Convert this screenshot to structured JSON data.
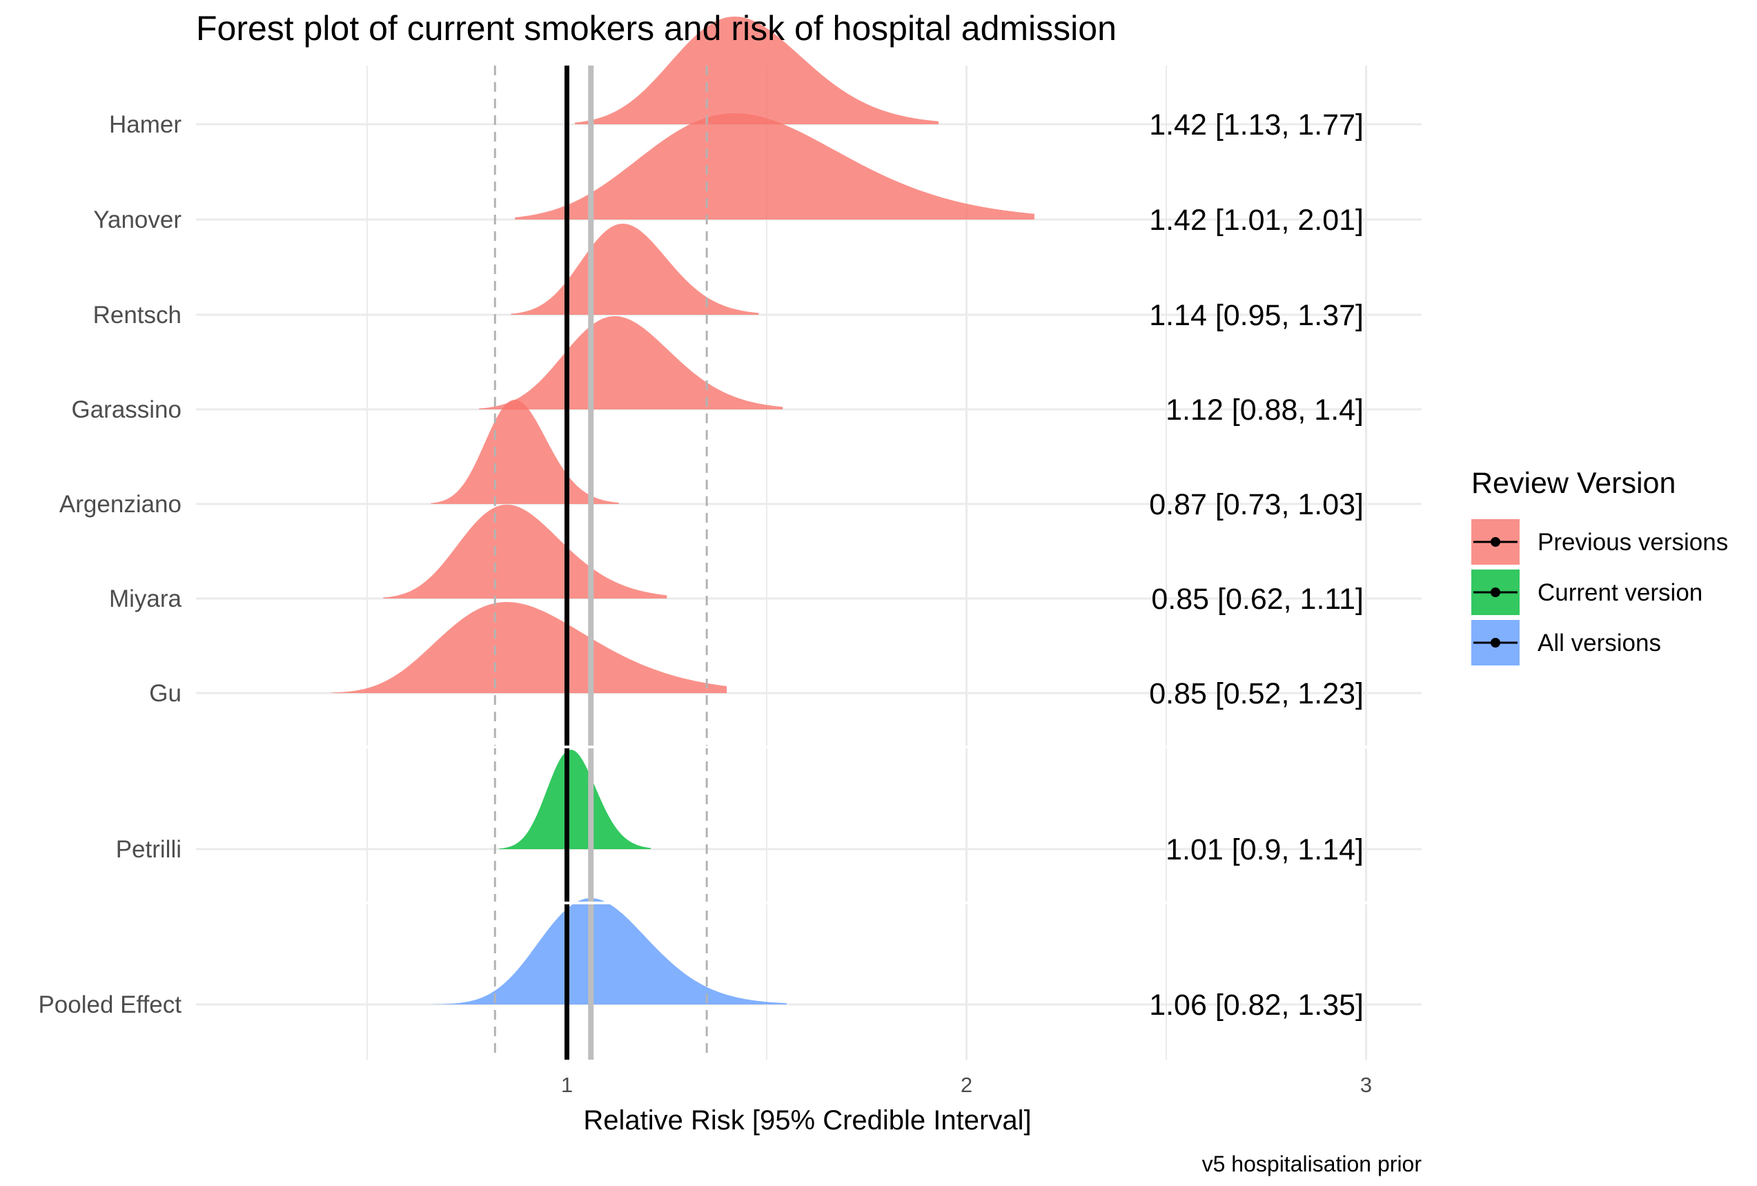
{
  "chart_data": {
    "type": "forest-density",
    "title": "Forest plot of current smokers and risk of hospital admission",
    "xlabel": "Relative Risk [95% Credible Interval]",
    "ylabel": "",
    "caption": "v5 hospitalisation prior",
    "xlim": [
      0,
      3.15
    ],
    "xticks": [
      1,
      2,
      3
    ],
    "grid": true,
    "null_line": 1,
    "pooled_line": 1.06,
    "pooled_interval": [
      0.82,
      1.35
    ],
    "legend": {
      "title": "Review Version",
      "placement": "right",
      "items": [
        {
          "label": "Previous versions",
          "color": "#F8766D"
        },
        {
          "label": "Current version",
          "color": "#00BA38"
        },
        {
          "label": "All versions",
          "color": "#619CFF"
        }
      ]
    },
    "studies": [
      {
        "name": "Hamer",
        "estimate": 1.42,
        "lower": 1.13,
        "upper": 1.77,
        "label": "1.42 [1.13, 1.77]",
        "group": "Previous versions",
        "density_range": [
          1.02,
          1.93
        ]
      },
      {
        "name": "Yanover",
        "estimate": 1.42,
        "lower": 1.01,
        "upper": 2.01,
        "label": "1.42 [1.01, 2.01]",
        "group": "Previous versions",
        "density_range": [
          0.87,
          2.17
        ]
      },
      {
        "name": "Rentsch",
        "estimate": 1.14,
        "lower": 0.95,
        "upper": 1.37,
        "label": "1.14 [0.95, 1.37]",
        "group": "Previous versions",
        "density_range": [
          0.86,
          1.48
        ]
      },
      {
        "name": "Garassino",
        "estimate": 1.12,
        "lower": 0.88,
        "upper": 1.4,
        "label": "1.12 [0.88, 1.4]",
        "group": "Previous versions",
        "density_range": [
          0.78,
          1.54
        ]
      },
      {
        "name": "Argenziano",
        "estimate": 0.87,
        "lower": 0.73,
        "upper": 1.03,
        "label": "0.87 [0.73, 1.03]",
        "group": "Previous versions",
        "density_range": [
          0.66,
          1.13
        ]
      },
      {
        "name": "Miyara",
        "estimate": 0.85,
        "lower": 0.62,
        "upper": 1.11,
        "label": "0.85 [0.62, 1.11]",
        "group": "Previous versions",
        "density_range": [
          0.54,
          1.25
        ]
      },
      {
        "name": "Gu",
        "estimate": 0.85,
        "lower": 0.52,
        "upper": 1.23,
        "label": "0.85 [0.52, 1.23]",
        "group": "Previous versions",
        "density_range": [
          0.41,
          1.4
        ]
      },
      {
        "name": "Petrilli",
        "estimate": 1.01,
        "lower": 0.9,
        "upper": 1.14,
        "label": "1.01 [0.9, 1.14]",
        "group": "Current version",
        "density_range": [
          0.83,
          1.21
        ]
      },
      {
        "name": "Pooled Effect",
        "estimate": 1.06,
        "lower": 0.82,
        "upper": 1.35,
        "label": "1.06 [0.82, 1.35]",
        "group": "All versions",
        "density_range": [
          0.66,
          1.55
        ]
      }
    ]
  }
}
